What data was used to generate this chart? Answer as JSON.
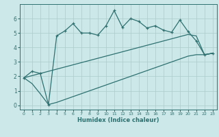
{
  "xlabel": "Humidex (Indice chaleur)",
  "background_color": "#cce8e8",
  "line_color": "#2d7070",
  "grid_color": "#aacccc",
  "xlim": [
    -0.5,
    23.5
  ],
  "ylim": [
    -0.3,
    7.0
  ],
  "yticks": [
    0,
    1,
    2,
    3,
    4,
    5,
    6
  ],
  "xticks": [
    0,
    1,
    2,
    3,
    4,
    5,
    6,
    7,
    8,
    9,
    10,
    11,
    12,
    13,
    14,
    15,
    16,
    17,
    18,
    19,
    20,
    21,
    22,
    23
  ],
  "line_max_x": [
    0,
    1,
    2,
    3,
    4,
    5,
    6,
    7,
    8,
    9,
    10,
    11,
    12,
    13,
    14,
    15,
    16,
    17,
    18,
    19,
    20,
    21,
    22,
    23
  ],
  "line_max_y": [
    1.9,
    2.35,
    2.2,
    0.05,
    4.8,
    5.15,
    5.65,
    5.0,
    5.0,
    4.85,
    5.5,
    6.55,
    5.4,
    6.0,
    5.8,
    5.35,
    5.5,
    5.2,
    5.05,
    5.9,
    5.1,
    4.45,
    3.5,
    3.6
  ],
  "line_mean_x": [
    0,
    1,
    2,
    3,
    4,
    5,
    6,
    7,
    8,
    9,
    10,
    11,
    12,
    13,
    14,
    15,
    16,
    17,
    18,
    19,
    20,
    21,
    22,
    23
  ],
  "line_mean_y": [
    1.9,
    2.05,
    2.2,
    2.35,
    2.5,
    2.65,
    2.8,
    2.95,
    3.1,
    3.25,
    3.4,
    3.55,
    3.7,
    3.85,
    4.0,
    4.15,
    4.3,
    4.45,
    4.6,
    4.75,
    4.9,
    4.8,
    3.5,
    3.6
  ],
  "line_min_x": [
    0,
    1,
    2,
    3,
    4,
    5,
    6,
    7,
    8,
    9,
    10,
    11,
    12,
    13,
    14,
    15,
    16,
    17,
    18,
    19,
    20,
    21,
    22,
    23
  ],
  "line_min_y": [
    1.9,
    1.5,
    0.8,
    0.05,
    0.2,
    0.4,
    0.6,
    0.8,
    1.0,
    1.2,
    1.4,
    1.6,
    1.8,
    2.0,
    2.2,
    2.4,
    2.6,
    2.8,
    3.0,
    3.2,
    3.4,
    3.5,
    3.5,
    3.6
  ]
}
